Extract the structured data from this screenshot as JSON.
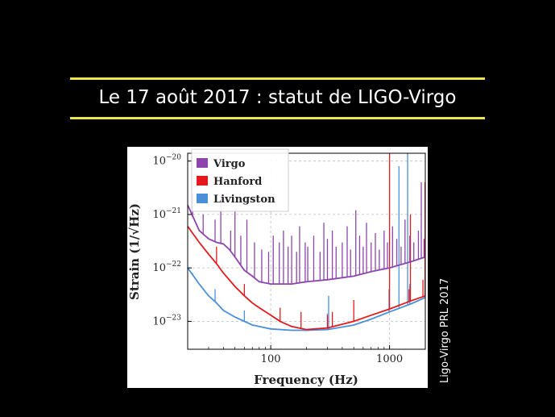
{
  "slide": {
    "title": "Le 17 août 2017 : statut de LIGO-Virgo",
    "credit": "Ligo-Virgo PRL 2017",
    "accent_color": "#e8e64a",
    "background": "#000000"
  },
  "chart_data": {
    "type": "line",
    "title": "",
    "xlabel": "Frequency (Hz)",
    "ylabel": "Strain (1/√Hz)",
    "xscale": "log",
    "yscale": "log",
    "xlim": [
      20,
      2000
    ],
    "ylim": [
      3e-24,
      1.4e-20
    ],
    "x_ticks": [
      {
        "v": 100,
        "label": "100"
      },
      {
        "v": 1000,
        "label": "1000"
      }
    ],
    "y_ticks": [
      {
        "v": 1e-20,
        "base": "10",
        "exp": "−20"
      },
      {
        "v": 1e-21,
        "base": "10",
        "exp": "−21"
      },
      {
        "v": 1e-22,
        "base": "10",
        "exp": "−22"
      },
      {
        "v": 1e-23,
        "base": "10",
        "exp": "−23"
      }
    ],
    "grid": true,
    "legend_position": "top-left",
    "series": [
      {
        "name": "Virgo",
        "color": "#8e44ad",
        "x": [
          20,
          25,
          30,
          35,
          40,
          45,
          50,
          60,
          70,
          80,
          100,
          150,
          200,
          300,
          500,
          700,
          1000,
          1500,
          2000
        ],
        "y": [
          1.5e-21,
          5e-22,
          3.5e-22,
          3e-22,
          2.8e-22,
          2.2e-22,
          1.6e-22,
          9e-23,
          7e-23,
          5.5e-23,
          5e-23,
          5e-23,
          5.5e-23,
          6e-23,
          7e-23,
          8.5e-23,
          1e-22,
          1.3e-22,
          1.6e-22
        ],
        "lines": [
          {
            "x": 22,
            "y": 2.5e-21
          },
          {
            "x": 27,
            "y": 1e-21
          },
          {
            "x": 34,
            "y": 8e-22
          },
          {
            "x": 38,
            "y": 2.5e-21
          },
          {
            "x": 46,
            "y": 5e-22
          },
          {
            "x": 50,
            "y": 1.3e-21
          },
          {
            "x": 56,
            "y": 4e-22
          },
          {
            "x": 63,
            "y": 8e-22
          },
          {
            "x": 73,
            "y": 3e-22
          },
          {
            "x": 84,
            "y": 2.2e-22
          },
          {
            "x": 96,
            "y": 2e-22
          },
          {
            "x": 105,
            "y": 4e-22
          },
          {
            "x": 118,
            "y": 3e-22
          },
          {
            "x": 128,
            "y": 5e-22
          },
          {
            "x": 140,
            "y": 2.5e-22
          },
          {
            "x": 150,
            "y": 4e-22
          },
          {
            "x": 165,
            "y": 2e-22
          },
          {
            "x": 175,
            "y": 6e-22
          },
          {
            "x": 195,
            "y": 3e-22
          },
          {
            "x": 205,
            "y": 2.5e-22
          },
          {
            "x": 230,
            "y": 4e-22
          },
          {
            "x": 260,
            "y": 2e-22
          },
          {
            "x": 280,
            "y": 7e-22
          },
          {
            "x": 300,
            "y": 3.5e-22
          },
          {
            "x": 330,
            "y": 5e-22
          },
          {
            "x": 355,
            "y": 2.5e-22
          },
          {
            "x": 400,
            "y": 3e-22
          },
          {
            "x": 440,
            "y": 6e-22
          },
          {
            "x": 470,
            "y": 2.2e-22
          },
          {
            "x": 520,
            "y": 1.2e-21
          },
          {
            "x": 560,
            "y": 4e-22
          },
          {
            "x": 600,
            "y": 2.5e-22
          },
          {
            "x": 640,
            "y": 7e-22
          },
          {
            "x": 700,
            "y": 3e-22
          },
          {
            "x": 760,
            "y": 4.5e-22
          },
          {
            "x": 820,
            "y": 2.2e-22
          },
          {
            "x": 900,
            "y": 5e-22
          },
          {
            "x": 960,
            "y": 3e-22
          },
          {
            "x": 1060,
            "y": 6e-22
          },
          {
            "x": 1150,
            "y": 3.5e-22
          },
          {
            "x": 1250,
            "y": 2.5e-22
          },
          {
            "x": 1350,
            "y": 8e-22
          },
          {
            "x": 1480,
            "y": 4e-22
          },
          {
            "x": 1600,
            "y": 3e-22
          },
          {
            "x": 1750,
            "y": 5e-22
          },
          {
            "x": 1850,
            "y": 4e-21
          },
          {
            "x": 1950,
            "y": 3.5e-22
          }
        ]
      },
      {
        "name": "Hanford",
        "color": "#e31a1c",
        "x": [
          20,
          25,
          30,
          35,
          40,
          50,
          60,
          70,
          80,
          100,
          120,
          150,
          200,
          300,
          500,
          700,
          1000,
          1500,
          2000
        ],
        "y": [
          6e-22,
          3e-22,
          1.8e-22,
          1.2e-22,
          8e-23,
          4.5e-23,
          3e-23,
          2.2e-23,
          1.8e-23,
          1.3e-23,
          1e-23,
          8e-24,
          7e-24,
          7.5e-24,
          1e-23,
          1.3e-23,
          1.7e-23,
          2.4e-23,
          3e-23
        ],
        "lines": [
          {
            "x": 35,
            "y": 2.5e-22
          },
          {
            "x": 60,
            "y": 5e-23
          },
          {
            "x": 120,
            "y": 1.8e-23
          },
          {
            "x": 180,
            "y": 1.5e-23
          },
          {
            "x": 300,
            "y": 1.3e-23
          },
          {
            "x": 330,
            "y": 1.5e-23
          },
          {
            "x": 500,
            "y": 2.5e-23
          },
          {
            "x": 1000,
            "y": 1.5e-20
          },
          {
            "x": 1460,
            "y": 4e-23
          },
          {
            "x": 1500,
            "y": 1e-21
          },
          {
            "x": 1910,
            "y": 6e-23
          },
          {
            "x": 1990,
            "y": 4e-21
          }
        ]
      },
      {
        "name": "Livingston",
        "color": "#4a90d9",
        "x": [
          20,
          25,
          30,
          35,
          40,
          50,
          60,
          70,
          80,
          100,
          150,
          200,
          300,
          500,
          700,
          1000,
          1500,
          2000
        ],
        "y": [
          1e-22,
          5e-23,
          3e-23,
          2.2e-23,
          1.6e-23,
          1.2e-23,
          1e-23,
          8.5e-24,
          8e-24,
          7.2e-24,
          6.8e-24,
          6.8e-24,
          7e-24,
          8.5e-24,
          1.1e-23,
          1.5e-23,
          2.1e-23,
          2.8e-23
        ],
        "lines": [
          {
            "x": 22,
            "y": 8e-23
          },
          {
            "x": 34,
            "y": 4e-23
          },
          {
            "x": 60,
            "y": 1.6e-23
          },
          {
            "x": 300,
            "y": 1.4e-23
          },
          {
            "x": 307,
            "y": 3e-23
          },
          {
            "x": 990,
            "y": 4e-23
          },
          {
            "x": 1200,
            "y": 8e-21
          },
          {
            "x": 1420,
            "y": 2.5e-20
          },
          {
            "x": 1480,
            "y": 5e-23
          }
        ]
      }
    ]
  }
}
